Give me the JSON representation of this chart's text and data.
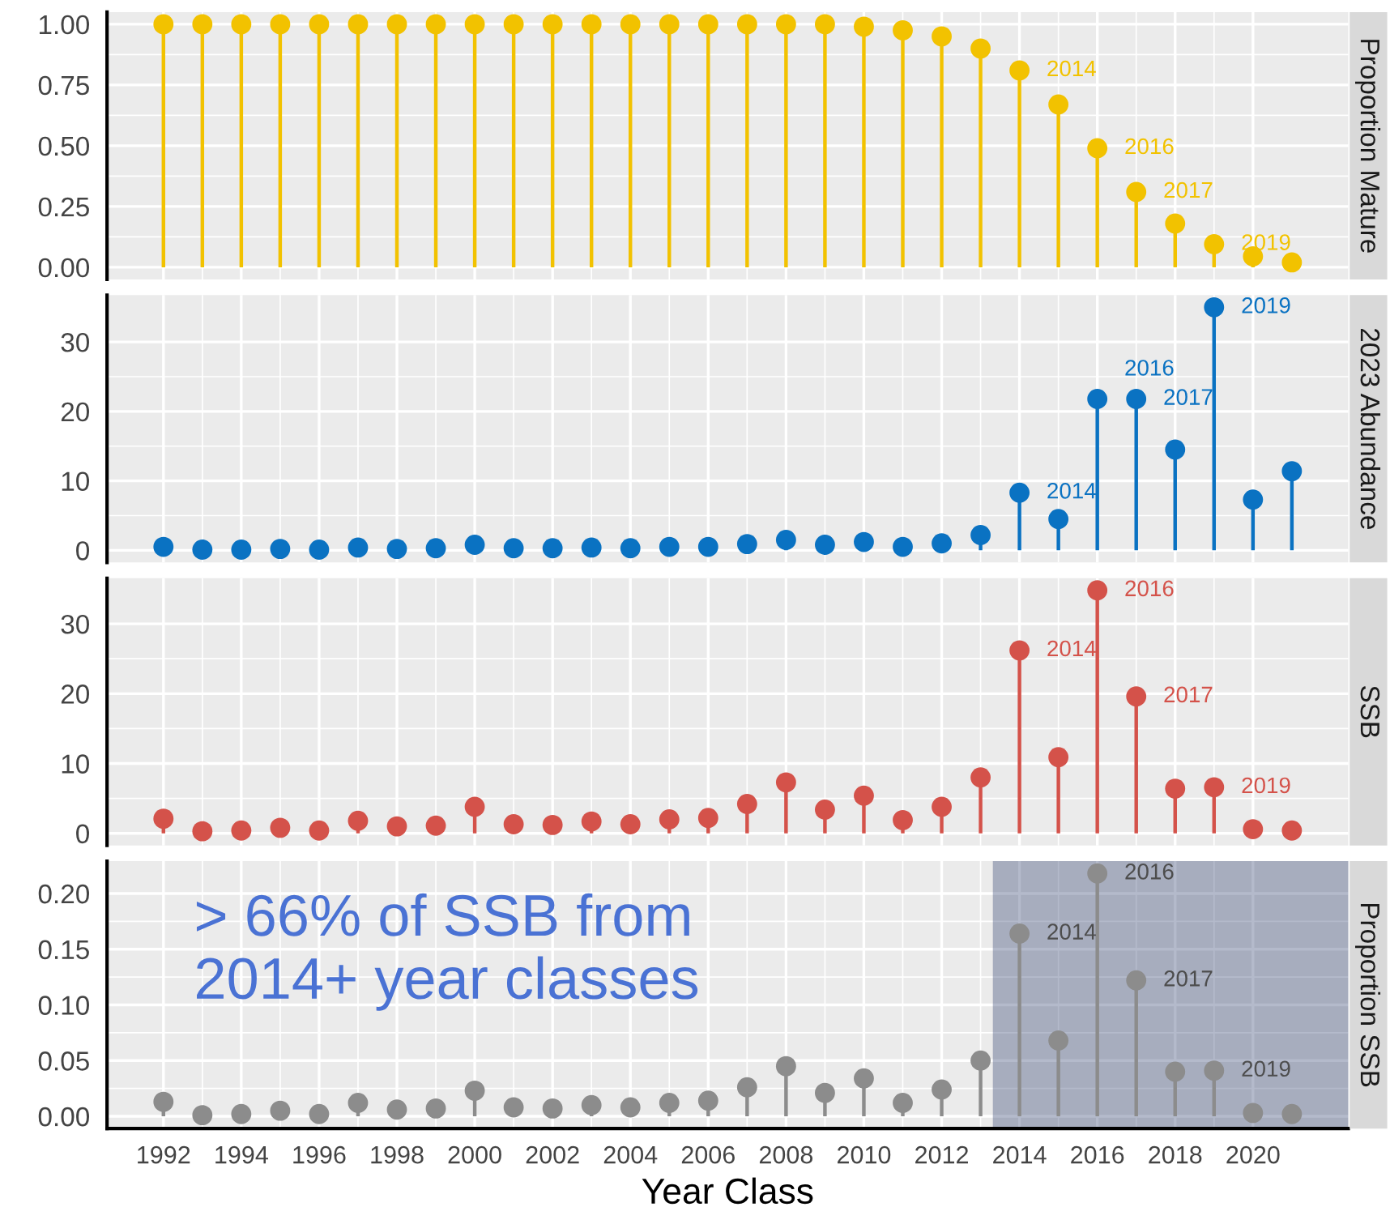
{
  "chart_data": [
    {
      "type": "lollipop",
      "title": "Proportion Mature",
      "x": [
        1992,
        1993,
        1994,
        1995,
        1996,
        1997,
        1998,
        1999,
        2000,
        2001,
        2002,
        2003,
        2004,
        2005,
        2006,
        2007,
        2008,
        2009,
        2010,
        2011,
        2012,
        2013,
        2014,
        2015,
        2016,
        2017,
        2018,
        2019,
        2020,
        2021
      ],
      "series": [
        {
          "color": "#f2c200",
          "values": [
            1.0,
            1.0,
            1.0,
            1.0,
            1.0,
            1.0,
            1.0,
            1.0,
            1.0,
            1.0,
            1.0,
            1.0,
            1.0,
            1.0,
            1.0,
            1.0,
            1.0,
            1.0,
            0.99,
            0.975,
            0.95,
            0.9,
            0.81,
            0.67,
            0.49,
            0.31,
            0.18,
            0.095,
            0.045,
            0.02
          ]
        }
      ],
      "xlim": [
        1990.55,
        2022.45
      ],
      "xticks": [
        1992,
        1994,
        1996,
        1998,
        2000,
        2002,
        2004,
        2006,
        2008,
        2010,
        2012,
        2014,
        2016,
        2018,
        2020
      ],
      "ylim": [
        -0.05,
        1.05
      ],
      "yticks": [
        {
          "value": 0,
          "label": "0.00"
        },
        {
          "value": 0.25,
          "label": "0.25"
        },
        {
          "value": 0.5,
          "label": "0.50"
        },
        {
          "value": 0.75,
          "label": "0.75"
        },
        {
          "value": 1,
          "label": "1.00"
        }
      ],
      "tick_labels": "y",
      "grid": true,
      "marker": "circle",
      "annotations": [
        {
          "text": "2014",
          "x": 2014,
          "y": 0.81
        },
        {
          "text": "2016",
          "x": 2016,
          "y": 0.49
        },
        {
          "text": "2017",
          "x": 2017,
          "y": 0.31
        },
        {
          "text": "2019",
          "x": 2019,
          "y": 0.095
        }
      ]
    },
    {
      "type": "lollipop",
      "title": "2023 Abundance",
      "x": [
        1992,
        1993,
        1994,
        1995,
        1996,
        1997,
        1998,
        1999,
        2000,
        2001,
        2002,
        2003,
        2004,
        2005,
        2006,
        2007,
        2008,
        2009,
        2010,
        2011,
        2012,
        2013,
        2014,
        2015,
        2016,
        2017,
        2018,
        2019,
        2020,
        2021
      ],
      "series": [
        {
          "color": "#0a72c2",
          "values": [
            0.5,
            0.1,
            0.1,
            0.2,
            0.1,
            0.4,
            0.2,
            0.3,
            0.8,
            0.3,
            0.3,
            0.4,
            0.3,
            0.5,
            0.5,
            0.9,
            1.5,
            0.8,
            1.2,
            0.5,
            1.0,
            2.2,
            8.3,
            4.5,
            21.8,
            21.8,
            14.5,
            35,
            7.3,
            11.4
          ]
        }
      ],
      "xlim": [
        1990.55,
        2022.45
      ],
      "xticks": [
        1992,
        1994,
        1996,
        1998,
        2000,
        2002,
        2004,
        2006,
        2008,
        2010,
        2012,
        2014,
        2016,
        2018,
        2020
      ],
      "ylim": [
        -1.75,
        36.75
      ],
      "yticks": [
        0,
        10,
        20,
        30
      ],
      "tick_labels": "y",
      "grid": true,
      "marker": "circle",
      "annotations": [
        {
          "text": "2014",
          "x": 2014,
          "y": 8.3
        },
        {
          "text": "2016",
          "x": 2016,
          "y": 21.8
        },
        {
          "text": "2017",
          "x": 2017,
          "y": 21.8
        },
        {
          "text": "2019",
          "x": 2019,
          "y": 35
        }
      ]
    },
    {
      "type": "lollipop",
      "title": "SSB",
      "x": [
        1992,
        1993,
        1994,
        1995,
        1996,
        1997,
        1998,
        1999,
        2000,
        2001,
        2002,
        2003,
        2004,
        2005,
        2006,
        2007,
        2008,
        2009,
        2010,
        2011,
        2012,
        2013,
        2014,
        2015,
        2016,
        2017,
        2018,
        2019,
        2020,
        2021
      ],
      "series": [
        {
          "color": "#d4524a",
          "values": [
            2.1,
            0.3,
            0.4,
            0.8,
            0.4,
            1.8,
            1.0,
            1.1,
            3.8,
            1.3,
            1.2,
            1.7,
            1.3,
            2.0,
            2.2,
            4.2,
            7.3,
            3.4,
            5.4,
            1.9,
            3.8,
            8.0,
            26.2,
            10.9,
            34.8,
            19.6,
            6.4,
            6.6,
            0.6,
            0.4
          ]
        }
      ],
      "xlim": [
        1990.55,
        2022.45
      ],
      "xticks": [
        1992,
        1994,
        1996,
        1998,
        2000,
        2002,
        2004,
        2006,
        2008,
        2010,
        2012,
        2014,
        2016,
        2018,
        2020
      ],
      "ylim": [
        -1.74,
        36.54
      ],
      "yticks": [
        0,
        10,
        20,
        30
      ],
      "tick_labels": "y",
      "grid": true,
      "marker": "circle",
      "annotations": [
        {
          "text": "2014",
          "x": 2014,
          "y": 26.2
        },
        {
          "text": "2016",
          "x": 2016,
          "y": 34.8
        },
        {
          "text": "2017",
          "x": 2017,
          "y": 19.6
        },
        {
          "text": "2019",
          "x": 2019,
          "y": 6.6
        }
      ]
    },
    {
      "type": "lollipop",
      "title": "Proportion SSB",
      "xlabel": "Year Class",
      "x": [
        1992,
        1993,
        1994,
        1995,
        1996,
        1997,
        1998,
        1999,
        2000,
        2001,
        2002,
        2003,
        2004,
        2005,
        2006,
        2007,
        2008,
        2009,
        2010,
        2011,
        2012,
        2013,
        2014,
        2015,
        2016,
        2017,
        2018,
        2019,
        2020,
        2021
      ],
      "series": [
        {
          "color": "#8c8c8c",
          "values": [
            0.013,
            0.001,
            0.002,
            0.005,
            0.002,
            0.012,
            0.006,
            0.007,
            0.023,
            0.008,
            0.007,
            0.01,
            0.008,
            0.012,
            0.014,
            0.026,
            0.045,
            0.021,
            0.034,
            0.012,
            0.024,
            0.05,
            0.164,
            0.068,
            0.218,
            0.122,
            0.04,
            0.041,
            0.003,
            0.002
          ]
        }
      ],
      "xlim": [
        1990.55,
        2022.45
      ],
      "xticks": [
        1992,
        1994,
        1996,
        1998,
        2000,
        2002,
        2004,
        2006,
        2008,
        2010,
        2012,
        2014,
        2016,
        2018,
        2020
      ],
      "ylim": [
        -0.011,
        0.229
      ],
      "yticks": [
        {
          "value": 0,
          "label": "0.00"
        },
        {
          "value": 0.05,
          "label": "0.05"
        },
        {
          "value": 0.1,
          "label": "0.10"
        },
        {
          "value": 0.15,
          "label": "0.15"
        },
        {
          "value": 0.2,
          "label": "0.20"
        }
      ],
      "grid": true,
      "marker": "circle",
      "bands": [
        {
          "axis": "x",
          "from": 2013.35,
          "to": 2022.45,
          "color": "#2a3b6b"
        }
      ],
      "annotations": [
        "> 66% of SSB from\n2014+ year classes",
        {
          "text": "2014",
          "x": 2014,
          "y": 0.164
        },
        {
          "text": "2016",
          "x": 2016,
          "y": 0.218
        },
        {
          "text": "2017",
          "x": 2017,
          "y": 0.122
        },
        {
          "text": "2019",
          "x": 2019,
          "y": 0.041
        }
      ]
    }
  ]
}
